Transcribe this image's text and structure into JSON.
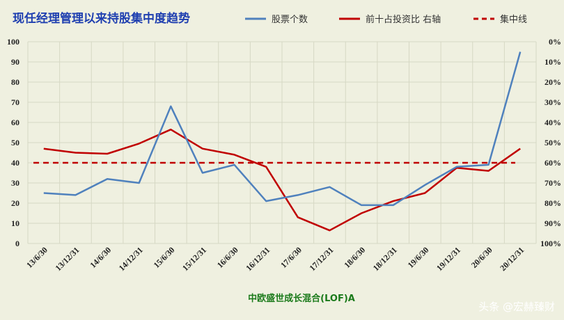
{
  "chart_data": {
    "type": "line",
    "title": "现任经理管理以来持股集中度趋势",
    "subtitle": "中欧盛世成长混合(LOF)A",
    "categories": [
      "13/6/30",
      "13/12/31",
      "14/6/30",
      "14/12/31",
      "15/6/30",
      "15/12/31",
      "16/6/30",
      "16/12/31",
      "17/6/30",
      "17/12/31",
      "18/6/30",
      "18/12/31",
      "19/6/30",
      "19/12/31",
      "20/6/30",
      "20/12/31"
    ],
    "y_left": {
      "ylim": [
        0,
        100
      ],
      "ticks": [
        "0",
        "10",
        "20",
        "30",
        "40",
        "50",
        "60",
        "70",
        "80",
        "90",
        "100"
      ]
    },
    "y_right": {
      "ylim": [
        100,
        0
      ],
      "ticks": [
        "0%",
        "10%",
        "20%",
        "30%",
        "40%",
        "50%",
        "60%",
        "70%",
        "80%",
        "90%",
        "100%"
      ]
    },
    "series": [
      {
        "name": "股票个数",
        "axis": "left",
        "color": "#4f81bd",
        "style": "solid",
        "values": [
          25,
          24,
          32,
          30,
          68,
          35,
          39,
          21,
          24,
          28,
          19,
          19,
          29,
          38,
          39,
          95
        ]
      },
      {
        "name": "前十占投资比 右轴",
        "axis": "right",
        "color": "#c00000",
        "style": "solid",
        "values": [
          53,
          55,
          55.5,
          50.5,
          43.5,
          53,
          56,
          62,
          87,
          93.5,
          85,
          79,
          75,
          62.5,
          64,
          53
        ]
      },
      {
        "name": "集中线",
        "axis": "left",
        "color": "#c00000",
        "style": "dashed",
        "values": [
          40,
          40,
          40,
          40,
          40,
          40,
          40,
          40,
          40,
          40,
          40,
          40,
          40,
          40,
          40,
          40
        ]
      }
    ],
    "grid": true,
    "legend_position": "top"
  },
  "watermark": "头条 @宏赫臻财"
}
